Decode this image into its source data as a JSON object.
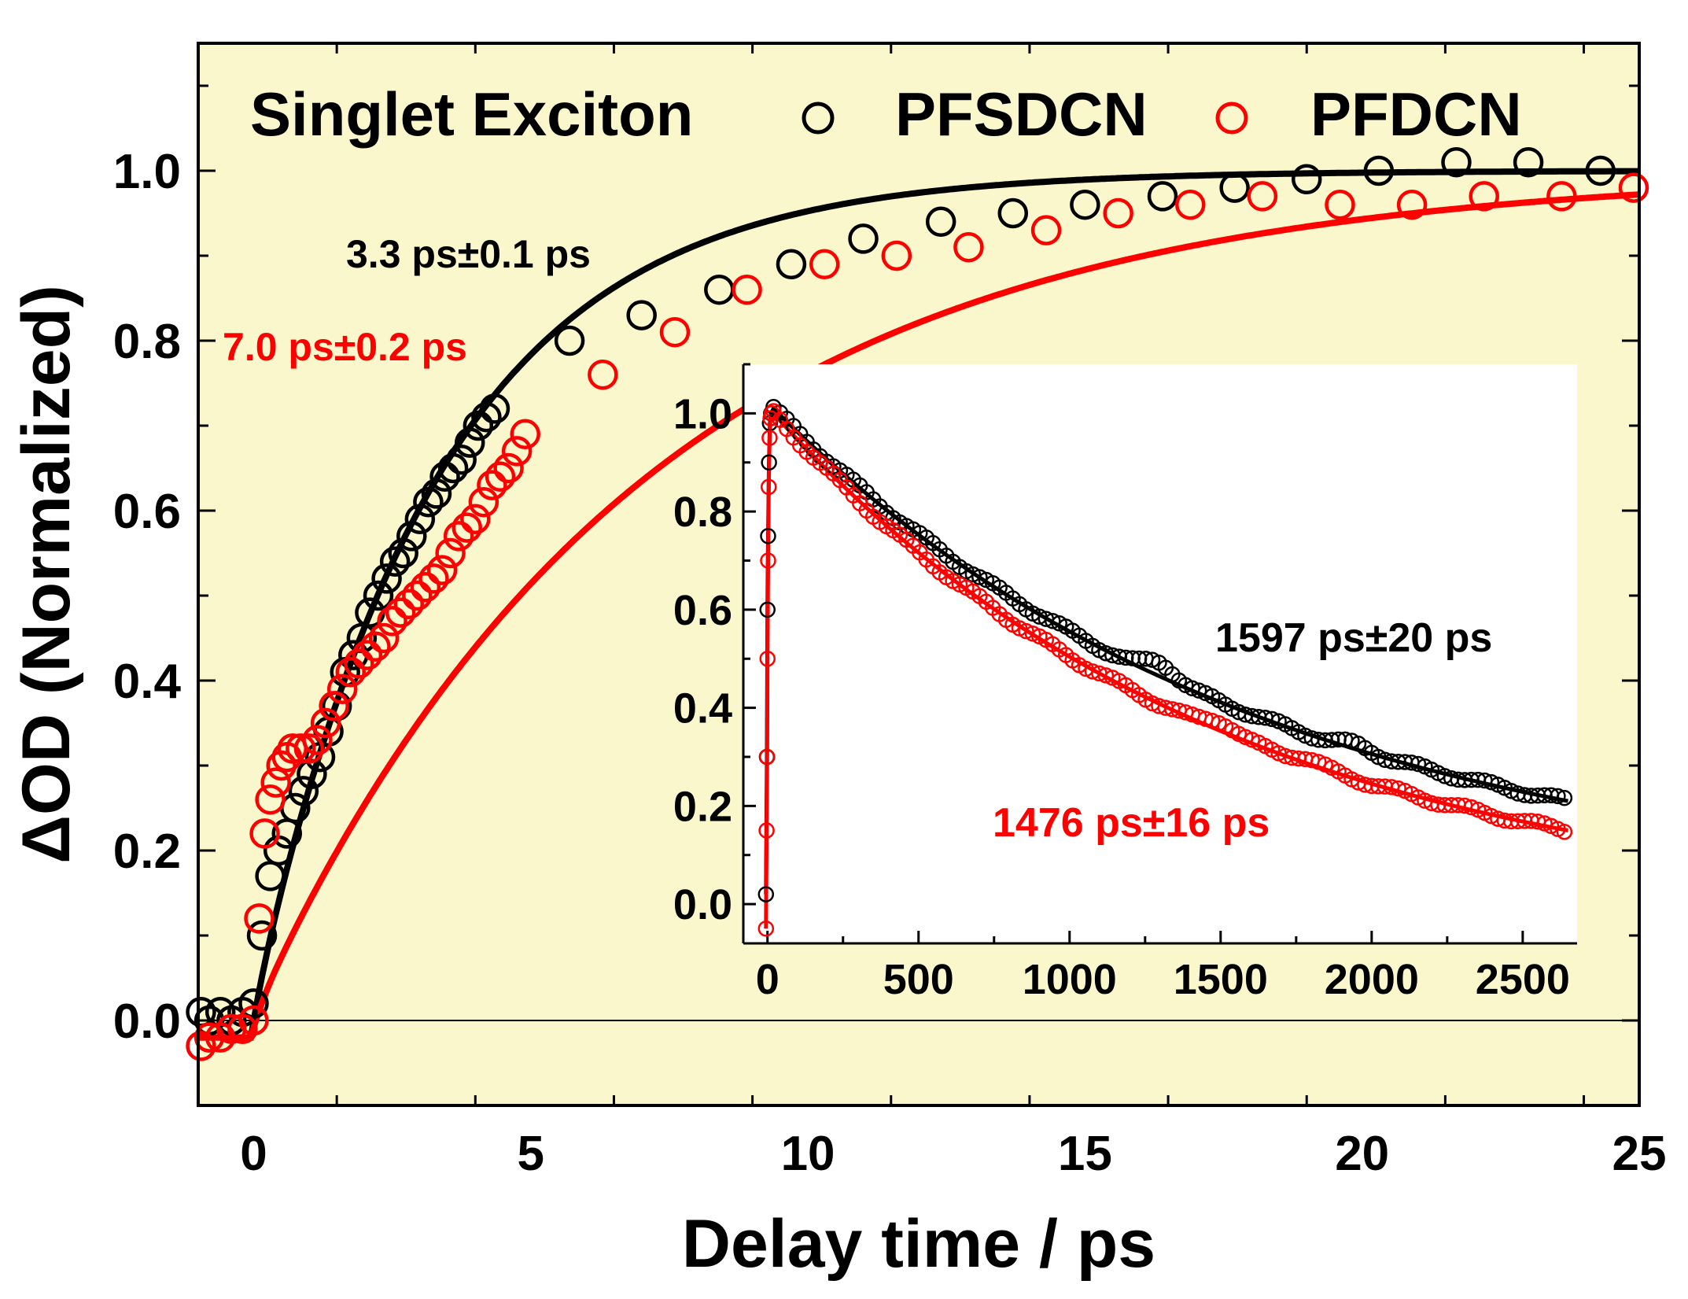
{
  "chart_data": [
    {
      "name": "main",
      "type": "scatter",
      "background_color": "#FAF7CC",
      "xlabel": "Delay time / ps",
      "ylabel": "ΔOD (Normalized)",
      "xlim": [
        -1,
        25
      ],
      "ylim": [
        -0.1,
        1.15
      ],
      "xticks": [
        0,
        5,
        10,
        15,
        20,
        25
      ],
      "yticks": [
        0.0,
        0.2,
        0.4,
        0.6,
        0.8,
        1.0
      ],
      "ytick_labels": [
        "0.0",
        "0.2",
        "0.4",
        "0.6",
        "0.8",
        "1.0"
      ],
      "zero_line": true,
      "legend": {
        "title": "Singlet Exciton",
        "position": "top",
        "entries": [
          {
            "label": "PFSDCN",
            "color": "#000000",
            "marker": "open-circle"
          },
          {
            "label": "PFDCN",
            "color": "#FF0000",
            "marker": "open-circle"
          }
        ]
      },
      "annotations": [
        {
          "text": "3.3 ps±0.1 ps",
          "color": "#000000"
        },
        {
          "text": "7.0 ps±0.2 ps",
          "color": "#FF0000"
        }
      ],
      "series": [
        {
          "name": "PFSDCN",
          "color": "#000000",
          "fit_tau_ps": 3.3,
          "x": [
            -0.95,
            -0.8,
            -0.6,
            -0.4,
            -0.2,
            0.0,
            0.15,
            0.3,
            0.45,
            0.6,
            0.75,
            0.9,
            1.05,
            1.2,
            1.35,
            1.5,
            1.65,
            1.8,
            1.95,
            2.1,
            2.25,
            2.4,
            2.55,
            2.7,
            2.85,
            3.0,
            3.15,
            3.3,
            3.45,
            3.6,
            3.75,
            3.9,
            4.05,
            4.2,
            4.35,
            5.7,
            7.0,
            8.4,
            9.7,
            11.0,
            12.4,
            13.7,
            15.0,
            16.4,
            17.7,
            19.0,
            20.3,
            21.7,
            23.0,
            24.3
          ],
          "y": [
            0.01,
            0.0,
            0.01,
            0.0,
            0.01,
            0.02,
            0.1,
            0.17,
            0.2,
            0.22,
            0.25,
            0.27,
            0.29,
            0.31,
            0.34,
            0.37,
            0.41,
            0.43,
            0.45,
            0.48,
            0.5,
            0.52,
            0.54,
            0.55,
            0.57,
            0.59,
            0.61,
            0.62,
            0.64,
            0.65,
            0.66,
            0.68,
            0.7,
            0.71,
            0.72,
            0.8,
            0.83,
            0.86,
            0.89,
            0.92,
            0.94,
            0.95,
            0.96,
            0.97,
            0.98,
            0.99,
            1.0,
            1.01,
            1.01,
            1.0
          ]
        },
        {
          "name": "PFDCN",
          "color": "#FF0000",
          "fit_tau_ps": 7.0,
          "x": [
            -0.95,
            -0.8,
            -0.6,
            -0.4,
            -0.2,
            0.0,
            0.1,
            0.2,
            0.3,
            0.4,
            0.5,
            0.6,
            0.7,
            0.85,
            1.0,
            1.15,
            1.3,
            1.45,
            1.6,
            1.75,
            1.9,
            2.05,
            2.2,
            2.35,
            2.5,
            2.65,
            2.8,
            2.95,
            3.1,
            3.25,
            3.4,
            3.55,
            3.7,
            3.85,
            4.0,
            4.15,
            4.3,
            4.45,
            4.6,
            4.75,
            4.9,
            6.3,
            7.6,
            8.9,
            10.3,
            11.6,
            12.9,
            14.3,
            15.6,
            16.9,
            18.2,
            19.6,
            20.9,
            22.2,
            23.6,
            24.9
          ],
          "y": [
            -0.03,
            -0.02,
            -0.02,
            -0.01,
            -0.01,
            0.0,
            0.12,
            0.22,
            0.26,
            0.28,
            0.3,
            0.31,
            0.32,
            0.32,
            0.32,
            0.33,
            0.35,
            0.37,
            0.39,
            0.41,
            0.42,
            0.43,
            0.44,
            0.45,
            0.47,
            0.48,
            0.49,
            0.5,
            0.51,
            0.52,
            0.53,
            0.55,
            0.57,
            0.58,
            0.59,
            0.61,
            0.63,
            0.64,
            0.65,
            0.67,
            0.69,
            0.76,
            0.81,
            0.86,
            0.89,
            0.9,
            0.91,
            0.93,
            0.95,
            0.96,
            0.97,
            0.96,
            0.96,
            0.97,
            0.97,
            0.98
          ]
        }
      ]
    },
    {
      "name": "inset",
      "type": "scatter",
      "background_color": "#FFFFFF",
      "xlim": [
        -80,
        2680
      ],
      "ylim": [
        -0.08,
        1.1
      ],
      "xticks": [
        0,
        500,
        1000,
        1500,
        2000,
        2500
      ],
      "yticks": [
        0.0,
        0.2,
        0.4,
        0.6,
        0.8,
        1.0
      ],
      "ytick_labels": [
        "0.0",
        "0.2",
        "0.4",
        "0.6",
        "0.8",
        "1.0"
      ],
      "annotations": [
        {
          "text": "1597 ps±20 ps",
          "color": "#000000"
        },
        {
          "text": "1476 ps±16 ps",
          "color": "#FF0000"
        }
      ],
      "series": [
        {
          "name": "PFSDCN",
          "color": "#000000",
          "fit_tau_ps": 1597,
          "peak": {
            "x": 20,
            "y": 1.01
          },
          "rise": {
            "x": [
              -5,
              -2,
              0,
              2,
              5,
              8,
              12
            ],
            "y": [
              0.02,
              0.3,
              0.6,
              0.75,
              0.9,
              0.98,
              1.0
            ]
          },
          "decay_end": {
            "x": 2650,
            "y": 0.21
          },
          "bumps": [
            {
              "x": 1300,
              "dy": 0.03
            },
            {
              "x": 1950,
              "dy": 0.01
            }
          ]
        },
        {
          "name": "PFDCN",
          "color": "#FF0000",
          "fit_tau_ps": 1476,
          "peak": {
            "x": 20,
            "y": 1.0
          },
          "rise": {
            "x": [
              -5,
              -3,
              -1,
              0,
              2,
              4,
              7,
              10,
              14
            ],
            "y": [
              -0.05,
              0.15,
              0.3,
              0.5,
              0.7,
              0.85,
              0.95,
              0.99,
              1.0
            ]
          },
          "decay_end": {
            "x": 2650,
            "y": 0.15
          },
          "bumps": [
            {
              "x": 1500,
              "dy": 0.02
            },
            {
              "x": 1780,
              "dy": 0.01
            }
          ]
        }
      ]
    }
  ]
}
